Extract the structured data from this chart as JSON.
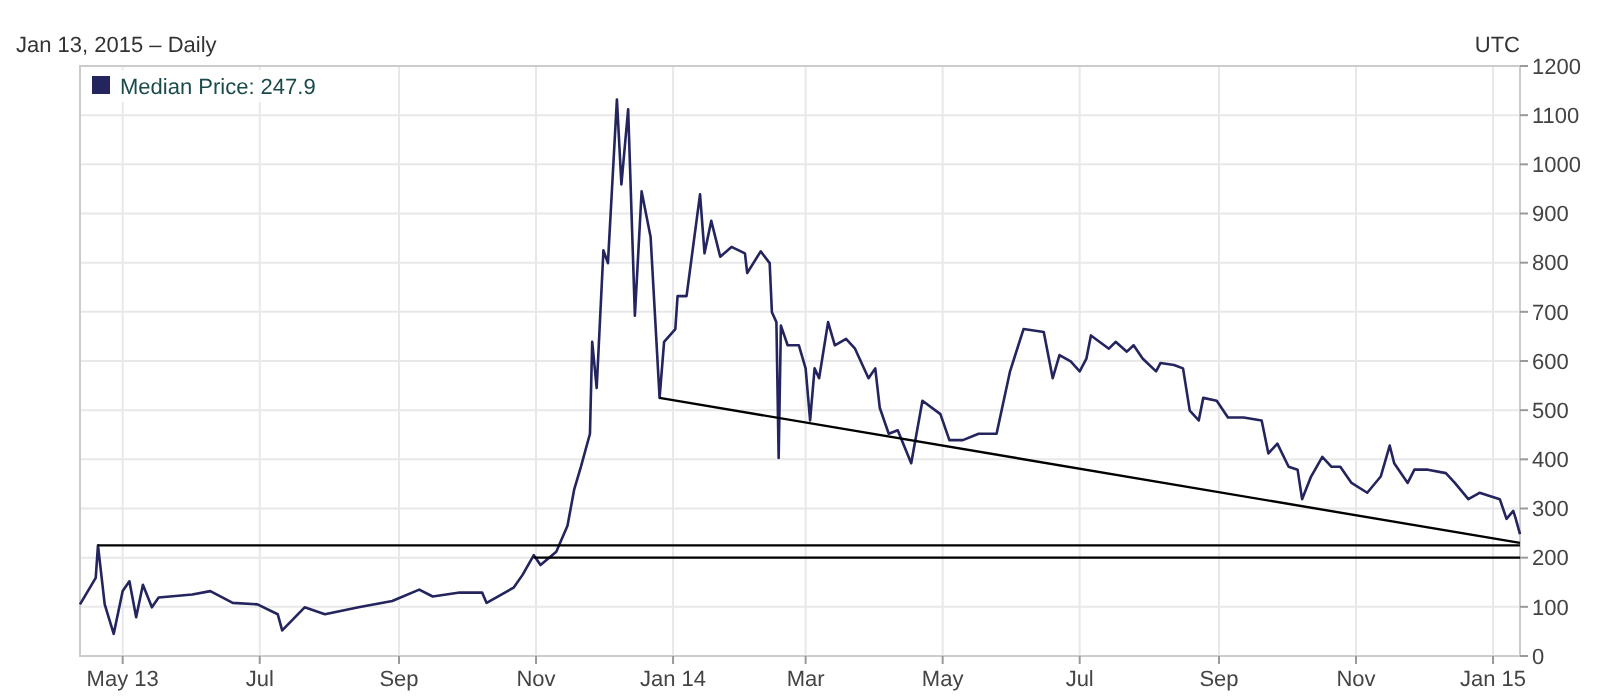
{
  "chart_data": {
    "type": "line",
    "subtitle": "Jan 13, 2015 – Daily",
    "annotations": [
      "UTC"
    ],
    "x": [
      "2013-04-12",
      "2013-04-19",
      "2013-04-20",
      "2013-04-23",
      "2013-04-27",
      "2013-05-01",
      "2013-05-04",
      "2013-05-07",
      "2013-05-10",
      "2013-05-14",
      "2013-05-17",
      "2013-06-01",
      "2013-06-09",
      "2013-06-19",
      "2013-06-30",
      "2013-07-09",
      "2013-07-11",
      "2013-07-21",
      "2013-07-30",
      "2013-08-14",
      "2013-08-29",
      "2013-09-10",
      "2013-09-16",
      "2013-09-28",
      "2013-10-08",
      "2013-10-10",
      "2013-10-22",
      "2013-10-26",
      "2013-10-31",
      "2013-11-03",
      "2013-11-10",
      "2013-11-15",
      "2013-11-18",
      "2013-11-21",
      "2013-11-25",
      "2013-11-26",
      "2013-11-28",
      "2013-12-01",
      "2013-12-03",
      "2013-12-07",
      "2013-12-09",
      "2013-12-12",
      "2013-12-15",
      "2013-12-18",
      "2013-12-22",
      "2013-12-26",
      "2013-12-28",
      "2014-01-02",
      "2014-01-03",
      "2014-01-07",
      "2014-01-13",
      "2014-01-15",
      "2014-01-18",
      "2014-01-22",
      "2014-01-27",
      "2014-02-02",
      "2014-02-03",
      "2014-02-09",
      "2014-02-13",
      "2014-02-14",
      "2014-02-16",
      "2014-02-17",
      "2014-02-18",
      "2014-02-21",
      "2014-02-26",
      "2014-03-01",
      "2014-03-03",
      "2014-03-05",
      "2014-03-07",
      "2014-03-11",
      "2014-03-14",
      "2014-03-19",
      "2014-03-23",
      "2014-03-29",
      "2014-04-01",
      "2014-04-03",
      "2014-04-07",
      "2014-04-11",
      "2014-04-17",
      "2014-04-22",
      "2014-04-30",
      "2014-05-04",
      "2014-05-10",
      "2014-05-17",
      "2014-05-25",
      "2014-05-31",
      "2014-06-06",
      "2014-06-15",
      "2014-06-19",
      "2014-06-22",
      "2014-06-27",
      "2014-07-01",
      "2014-07-04",
      "2014-07-06",
      "2014-07-14",
      "2014-07-17",
      "2014-07-22",
      "2014-07-25",
      "2014-07-29",
      "2014-08-04",
      "2014-08-06",
      "2014-08-12",
      "2014-08-16",
      "2014-08-19",
      "2014-08-23",
      "2014-08-25",
      "2014-08-31",
      "2014-09-05",
      "2014-09-12",
      "2014-09-20",
      "2014-09-23",
      "2014-09-27",
      "2014-10-02",
      "2014-10-06",
      "2014-10-08",
      "2014-10-12",
      "2014-10-17",
      "2014-10-21",
      "2014-10-25",
      "2014-10-30",
      "2014-11-06",
      "2014-11-12",
      "2014-11-16",
      "2014-11-18",
      "2014-11-24",
      "2014-11-27",
      "2014-12-03",
      "2014-12-11",
      "2014-12-15",
      "2014-12-21",
      "2014-12-26",
      "2015-01-04",
      "2015-01-07",
      "2015-01-10",
      "2015-01-11",
      "2015-01-13"
    ],
    "series": [
      {
        "name": "Median Price: 247.9",
        "color": "#24245e",
        "values": [
          105,
          159,
          225,
          105,
          45,
          132,
          152,
          79,
          145,
          99,
          119,
          125,
          132,
          108,
          105,
          85,
          52,
          99,
          85,
          99,
          112,
          135,
          121,
          129,
          129,
          108,
          139,
          165,
          205,
          185,
          212,
          265,
          339,
          385,
          452,
          639,
          545,
          825,
          799,
          1132,
          959,
          1112,
          692,
          945,
          852,
          525,
          639,
          665,
          732,
          732,
          939,
          819,
          885,
          812,
          832,
          819,
          779,
          823,
          799,
          699,
          679,
          403,
          672,
          632,
          632,
          585,
          479,
          585,
          565,
          679,
          632,
          645,
          625,
          565,
          585,
          505,
          452,
          459,
          392,
          519,
          492,
          439,
          439,
          452,
          452,
          579,
          665,
          659,
          565,
          612,
          599,
          579,
          605,
          652,
          625,
          639,
          619,
          632,
          605,
          579,
          596,
          592,
          585,
          499,
          479,
          525,
          519,
          485,
          485,
          479,
          412,
          432,
          385,
          379,
          319,
          365,
          405,
          385,
          385,
          352,
          332,
          365,
          428,
          392,
          352,
          379,
          379,
          372,
          352,
          319,
          332,
          319,
          279,
          295,
          281,
          248
        ]
      },
      {
        "color": "#000000",
        "x": [
          "2013-04-20",
          "2015-01-13"
        ],
        "values": [
          225,
          225
        ]
      },
      {
        "color": "#000000",
        "x": [
          "2013-10-31",
          "2015-01-13"
        ],
        "values": [
          200,
          200
        ]
      },
      {
        "color": "#000000",
        "x": [
          "2013-12-26",
          "2015-01-13"
        ],
        "values": [
          525,
          230
        ]
      }
    ],
    "xlim": [
      "2013-04-12",
      "2015-01-13"
    ],
    "xticks": [
      {
        "value": "2013-05-01",
        "label": "May 13"
      },
      {
        "value": "2013-07-01",
        "label": "Jul"
      },
      {
        "value": "2013-09-01",
        "label": "Sep"
      },
      {
        "value": "2013-11-01",
        "label": "Nov"
      },
      {
        "value": "2014-01-01",
        "label": "Jan 14"
      },
      {
        "value": "2014-03-01",
        "label": "Mar"
      },
      {
        "value": "2014-05-01",
        "label": "May"
      },
      {
        "value": "2014-07-01",
        "label": "Jul"
      },
      {
        "value": "2014-09-01",
        "label": "Sep"
      },
      {
        "value": "2014-11-01",
        "label": "Nov"
      },
      {
        "value": "2015-01-01",
        "label": "Jan 15"
      }
    ],
    "ylim": [
      0,
      1200
    ],
    "yticks": [
      0,
      100,
      200,
      300,
      400,
      500,
      600,
      700,
      800,
      900,
      1000,
      1100,
      1200
    ],
    "grid": true,
    "legend": "top left",
    "marker": "none",
    "line_style": "solid"
  }
}
